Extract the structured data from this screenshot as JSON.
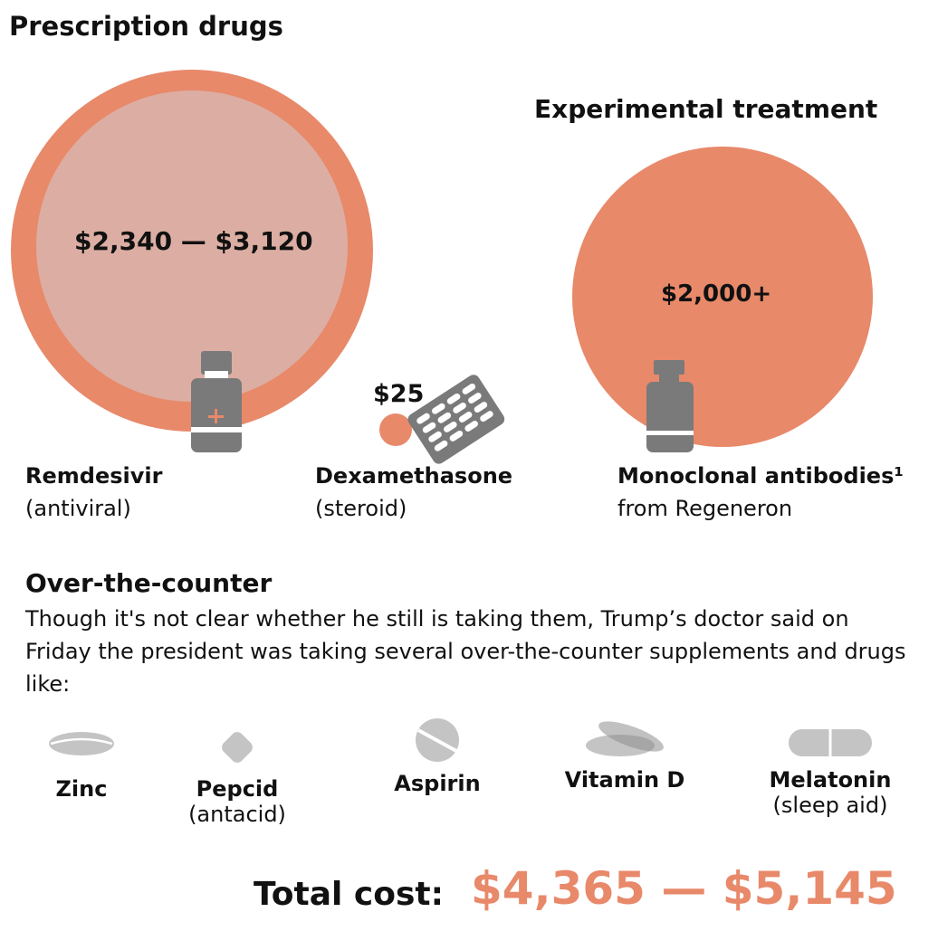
{
  "sections": {
    "prescription_title": "Prescription drugs",
    "experimental_title": "Experimental treatment",
    "otc_title": "Over-the-counter",
    "otc_description": "Though it's not clear whether he still is taking them, Trump’s doctor said on Friday the president was taking several over-the-counter supplements and drugs like:"
  },
  "drugs": {
    "remdesivir": {
      "price": "$2,340 — $3,120",
      "name": "Remdesivir",
      "type": "(antiviral)"
    },
    "dexamethasone": {
      "price": "$25",
      "name": "Dexamethasone",
      "type": "(steroid)"
    },
    "monoclonal": {
      "price": "$2,000+",
      "name": "Monoclonal antibodies¹",
      "type": "from Regeneron"
    }
  },
  "otc_items": [
    {
      "name": "Zinc",
      "note": ""
    },
    {
      "name": "Pepcid",
      "note": "(antacid)"
    },
    {
      "name": "Aspirin",
      "note": ""
    },
    {
      "name": "Vitamin D",
      "note": ""
    },
    {
      "name": "Melatonin",
      "note": "(sleep aid)"
    }
  ],
  "total": {
    "label": "Total cost:",
    "value": "$4,365 — $5,145"
  },
  "colors": {
    "accent": "#e8896a",
    "light": "#dcaea3",
    "icon": "#7a7a7a",
    "pill": "#c4c4c4"
  }
}
